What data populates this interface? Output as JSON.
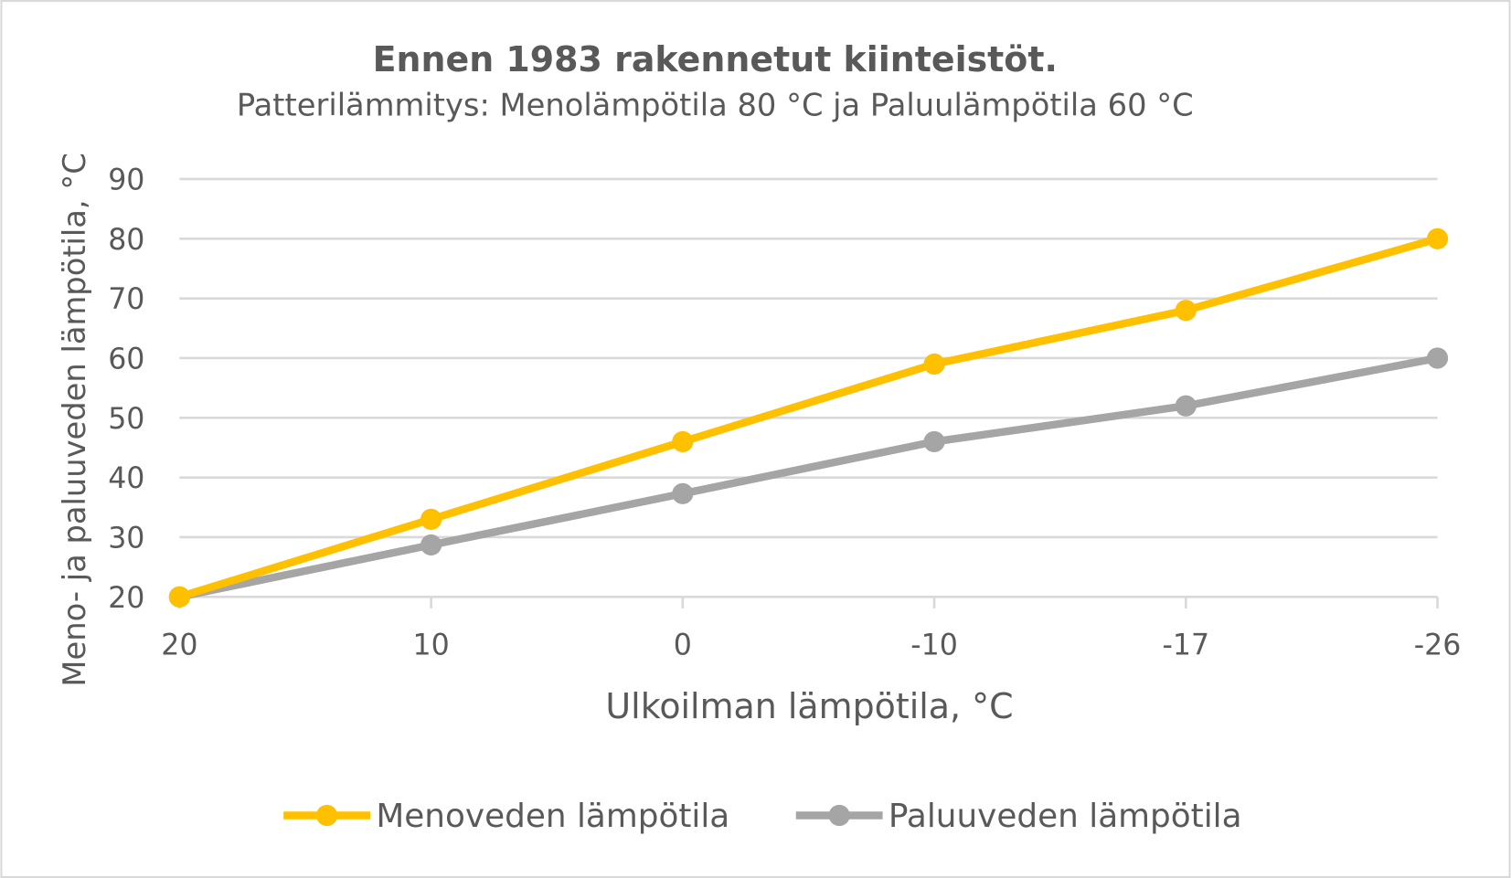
{
  "chart_data": {
    "type": "line",
    "title": "Ennen 1983 rakennetut kiinteistöt.",
    "subtitle": "Patterilämmitys: Menolämpötila 80 °C ja Paluulämpötila 60 °C",
    "xlabel": "Ulkoilman lämpötila, °C",
    "ylabel": "Meno- ja paluuveden lämpötila, °C",
    "categories": [
      "20",
      "10",
      "0",
      "-10",
      "-17",
      "-26"
    ],
    "ylim": [
      20,
      90
    ],
    "yticks": [
      "20",
      "30",
      "40",
      "50",
      "60",
      "70",
      "80",
      "90"
    ],
    "grid": true,
    "legend": "bottom",
    "series": [
      {
        "name": "Menoveden lämpötila",
        "color": "#FFC000",
        "values": [
          20,
          33,
          46,
          59,
          68,
          80
        ]
      },
      {
        "name": "Paluuveden lämpötila",
        "color": "#A5A5A5",
        "values": [
          20,
          28.7,
          37.3,
          46,
          52,
          60
        ]
      }
    ]
  }
}
